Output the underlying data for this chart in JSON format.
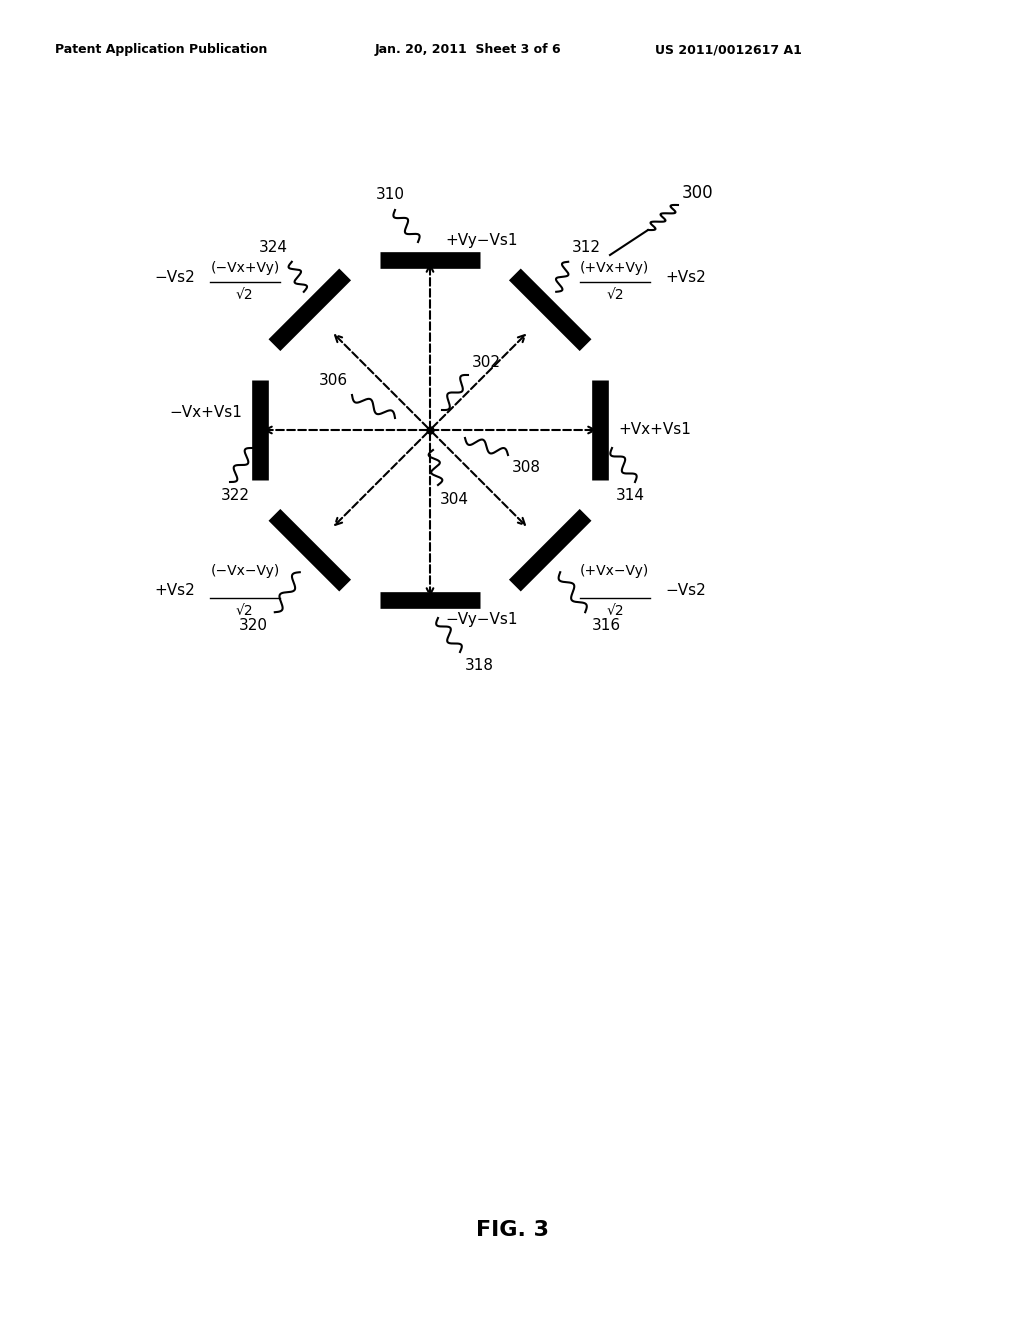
{
  "header_left": "Patent Application Publication",
  "header_mid": "Jan. 20, 2011  Sheet 3 of 6",
  "header_right": "US 2011/0012617 A1",
  "fig_label": "FIG. 3",
  "bg_color": "#ffffff"
}
